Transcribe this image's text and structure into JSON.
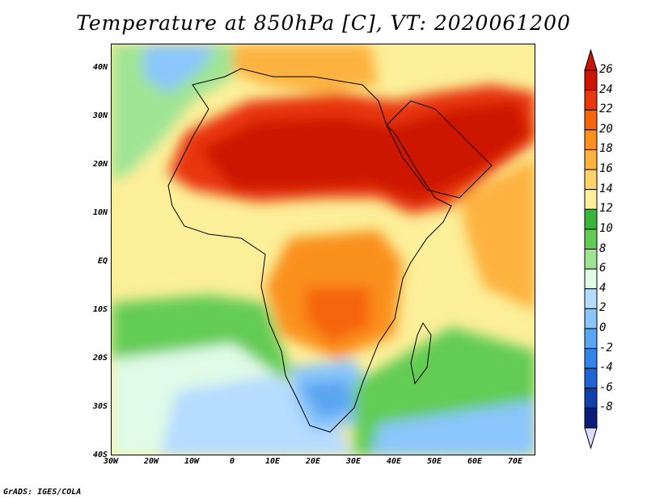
{
  "title": "Temperature at 850hPa [C], VT: 2020061200",
  "credit": "GrADS: IGES/COLA",
  "map": {
    "lon_range": [
      -30,
      75
    ],
    "lat_range": [
      -40,
      45
    ],
    "lat_labels": [
      {
        "lat": 40,
        "label": "40N"
      },
      {
        "lat": 30,
        "label": "30N"
      },
      {
        "lat": 20,
        "label": "20N"
      },
      {
        "lat": 10,
        "label": "10N"
      },
      {
        "lat": 0,
        "label": "EQ"
      },
      {
        "lat": -10,
        "label": "10S"
      },
      {
        "lat": -20,
        "label": "20S"
      },
      {
        "lat": -30,
        "label": "30S"
      },
      {
        "lat": -40,
        "label": "40S"
      }
    ],
    "lon_labels": [
      {
        "lon": -30,
        "label": "30W"
      },
      {
        "lon": -20,
        "label": "20W"
      },
      {
        "lon": -10,
        "label": "10W"
      },
      {
        "lon": 0,
        "label": "0"
      },
      {
        "lon": 10,
        "label": "10E"
      },
      {
        "lon": 20,
        "label": "20E"
      },
      {
        "lon": 30,
        "label": "30E"
      },
      {
        "lon": 40,
        "label": "40E"
      },
      {
        "lon": 50,
        "label": "50E"
      },
      {
        "lon": 60,
        "label": "60E"
      },
      {
        "lon": 70,
        "label": "70E"
      }
    ]
  },
  "colorbar": {
    "labels": [
      "26",
      "24",
      "22",
      "20",
      "18",
      "16",
      "14",
      "12",
      "10",
      "8",
      "6",
      "4",
      "2",
      "0",
      "-2",
      "-4",
      "-6",
      "-8"
    ],
    "colors": [
      "#cc1500",
      "#e8360d",
      "#f5650f",
      "#fa901d",
      "#fdb23f",
      "#fdd36b",
      "#fcef99",
      "#38b53a",
      "#63cc55",
      "#9fe494",
      "#e0fbe7",
      "#b6dcff",
      "#8ac6fb",
      "#5aa5f1",
      "#3284e8",
      "#1e64d4",
      "#1240aa",
      "#0a1e78"
    ],
    "min_triangle_color": "#dcdcff"
  }
}
